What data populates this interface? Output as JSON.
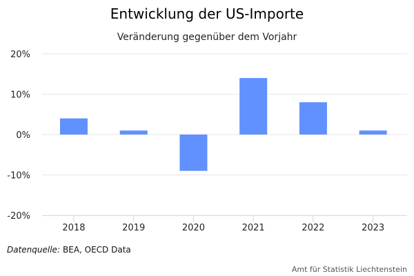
{
  "chart_data": {
    "type": "bar",
    "title": "Entwicklung der US-Importe",
    "subtitle": "Veränderung gegenüber dem Vorjahr",
    "categories": [
      "2018",
      "2019",
      "2020",
      "2021",
      "2022",
      "2023"
    ],
    "values": [
      4,
      1,
      -9,
      14,
      8,
      1
    ],
    "unit": "%",
    "ylim": [
      -20,
      20
    ],
    "yticks": [
      -20,
      -10,
      0,
      10,
      20
    ],
    "ytick_labels": [
      "-20%",
      "-10%",
      "0%",
      "10%",
      "20%"
    ],
    "xlabel": "",
    "ylabel": "",
    "grid": true,
    "bar_color": "#6190FF"
  },
  "source": {
    "label": "Datenquelle:",
    "text": "BEA, OECD Data"
  },
  "credit": "Amt für Statistik Liechtenstein"
}
